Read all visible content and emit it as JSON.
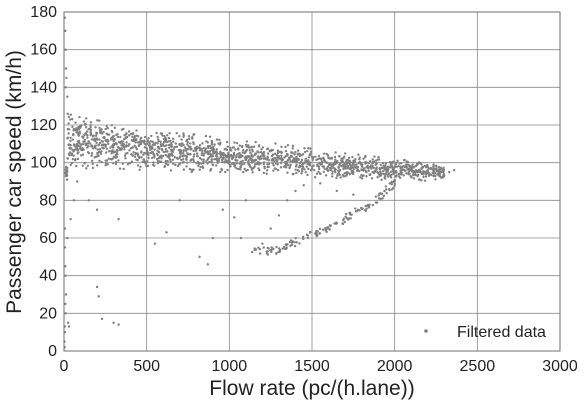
{
  "chart_data": {
    "type": "scatter",
    "title": "",
    "xlabel": "Flow rate (pc/(h.lane))",
    "ylabel": "Passenger car speed (km/h)",
    "xlim": [
      0,
      3000
    ],
    "ylim": [
      0,
      180
    ],
    "xticks": [
      0,
      500,
      1000,
      1500,
      2000,
      2500,
      3000
    ],
    "yticks": [
      0,
      20,
      40,
      60,
      80,
      100,
      120,
      140,
      160,
      180
    ],
    "grid": true,
    "legend": {
      "position": "bottom-right",
      "label": "Filtered data"
    },
    "series": [
      {
        "name": "Filtered data",
        "color": "#808080",
        "marker": "dot",
        "band": [
          [
            20,
            98,
            126
          ],
          [
            100,
            97,
            124
          ],
          [
            300,
            97,
            121
          ],
          [
            500,
            96,
            118
          ],
          [
            800,
            95,
            115
          ],
          [
            1000,
            95,
            112
          ],
          [
            1300,
            93,
            110
          ],
          [
            1600,
            92,
            106
          ],
          [
            1900,
            91,
            103
          ],
          [
            2100,
            90,
            101
          ],
          [
            2300,
            91,
            98
          ]
        ],
        "outliers": [
          [
            5,
            177
          ],
          [
            8,
            170
          ],
          [
            10,
            160
          ],
          [
            12,
            150
          ],
          [
            15,
            145
          ],
          [
            10,
            140
          ],
          [
            20,
            135
          ],
          [
            5,
            65
          ],
          [
            6,
            55
          ],
          [
            8,
            45
          ],
          [
            10,
            40
          ],
          [
            12,
            30
          ],
          [
            8,
            25
          ],
          [
            10,
            20
          ],
          [
            5,
            13
          ],
          [
            3,
            5
          ],
          [
            4,
            2
          ],
          [
            6,
            10
          ],
          [
            25,
            15
          ],
          [
            30,
            13
          ],
          [
            200,
            34
          ],
          [
            210,
            29
          ],
          [
            230,
            17
          ],
          [
            300,
            15
          ],
          [
            330,
            14
          ],
          [
            20,
            60
          ],
          [
            40,
            70
          ],
          [
            60,
            80
          ],
          [
            80,
            90
          ],
          [
            150,
            80
          ],
          [
            200,
            75
          ],
          [
            330,
            70
          ],
          [
            550,
            57
          ],
          [
            620,
            63
          ],
          [
            700,
            80
          ],
          [
            820,
            50
          ],
          [
            870,
            46
          ],
          [
            900,
            60
          ],
          [
            960,
            75
          ],
          [
            1030,
            71
          ],
          [
            1070,
            60
          ],
          [
            1100,
            80
          ],
          [
            1200,
            57
          ],
          [
            1250,
            65
          ],
          [
            1300,
            72
          ],
          [
            1350,
            80
          ],
          [
            1400,
            85
          ],
          [
            1450,
            88
          ],
          [
            1550,
            89
          ],
          [
            1650,
            85
          ],
          [
            1750,
            83
          ],
          [
            2200,
            95
          ],
          [
            2270,
            93
          ],
          [
            2330,
            95
          ],
          [
            2360,
            96
          ]
        ],
        "branch": [
          [
            1150,
            53
          ],
          [
            1250,
            53
          ],
          [
            1350,
            56
          ],
          [
            1450,
            60
          ],
          [
            1550,
            64
          ],
          [
            1650,
            68
          ],
          [
            1750,
            73
          ],
          [
            1850,
            78
          ],
          [
            1950,
            85
          ],
          [
            2000,
            90
          ]
        ]
      }
    ]
  }
}
